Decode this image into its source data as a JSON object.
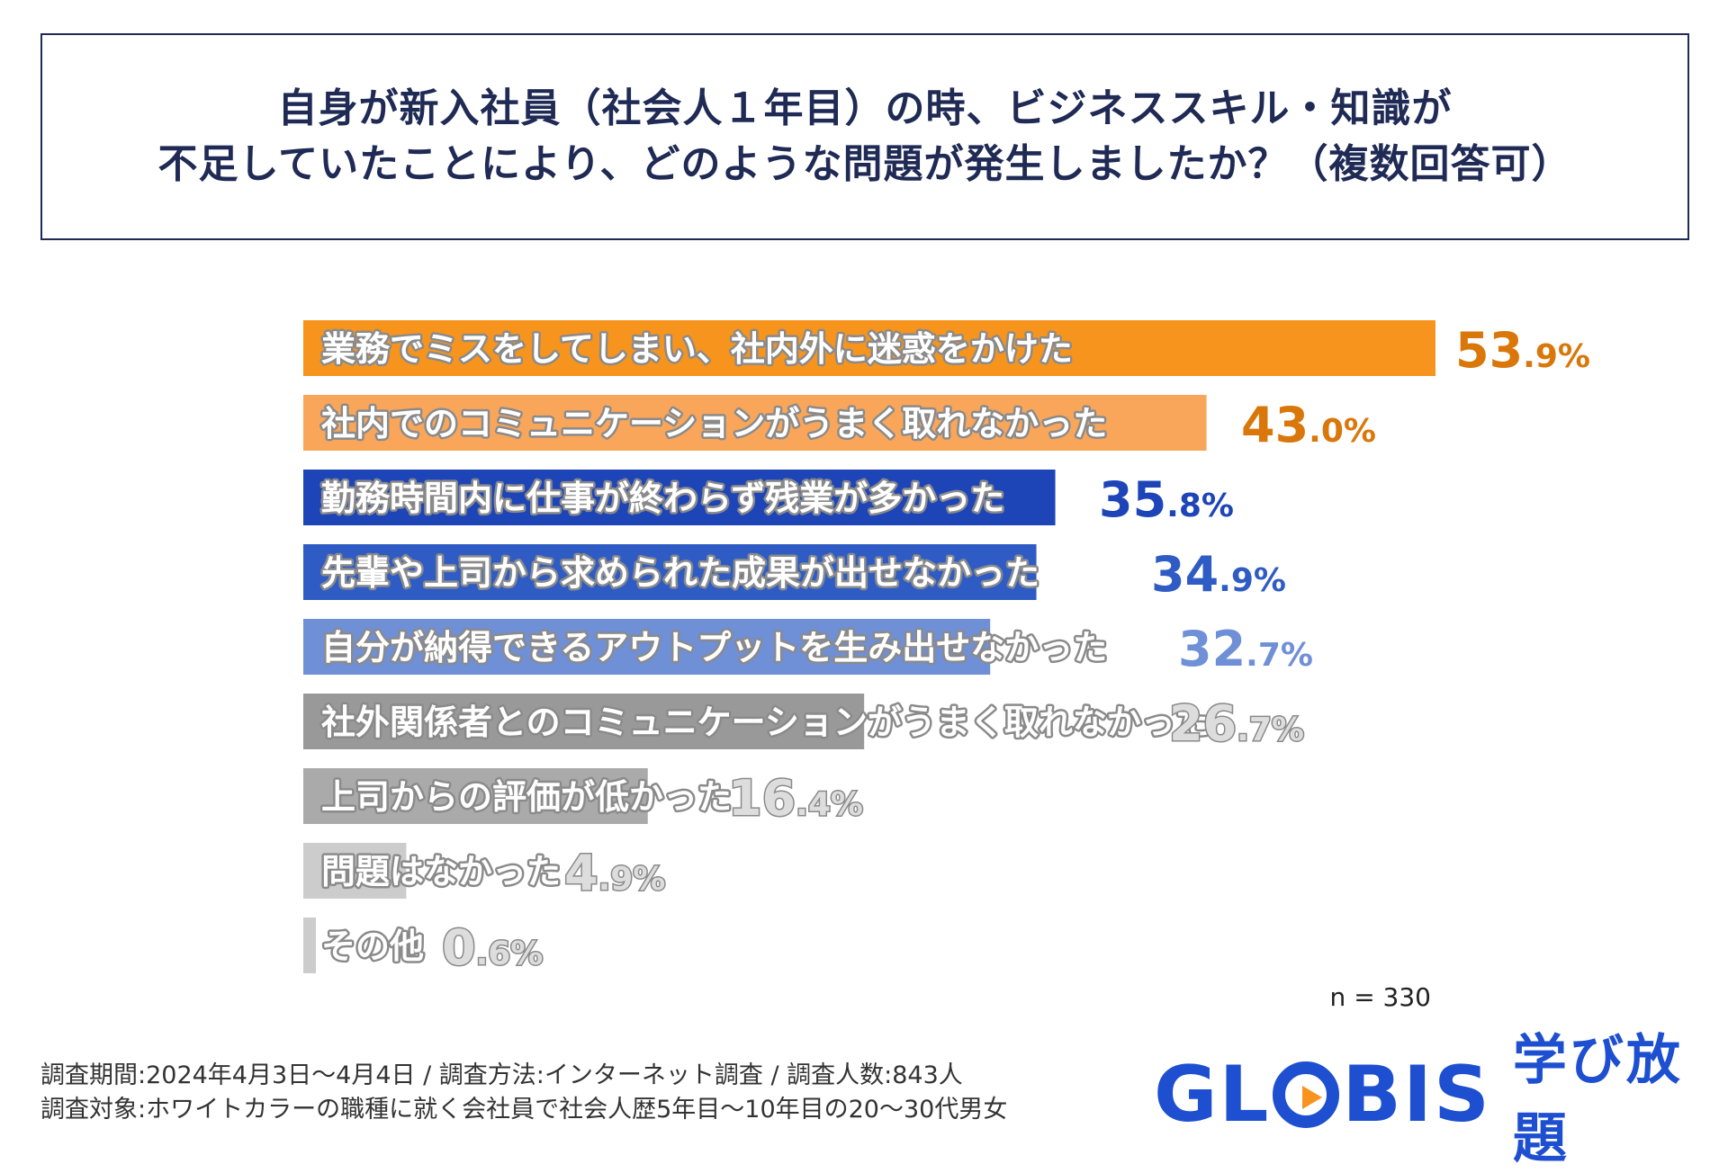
{
  "header": {
    "title_line1": "自身が新入社員（社会人１年目）の時、ビジネススキル・知識が",
    "title_line2": "不足していたことにより、どのような問題が発生しましたか？（複数回答可）"
  },
  "chart_data": {
    "type": "bar",
    "orientation": "horizontal",
    "categories": [
      "業務でミスをしてしまい、社内外に迷惑をかけた",
      "社内でのコミュニケーションがうまく取れなかった",
      "勤務時間内に仕事が終わらず残業が多かった",
      "先輩や上司から求められた成果が出せなかった",
      "自分が納得できるアウトプットを生み出せなかった",
      "社外関係者とのコミュニケーションがうまく取れなかった",
      "上司からの評価が低かった",
      "問題はなかった",
      "その他"
    ],
    "values": [
      53.9,
      43.0,
      35.8,
      34.9,
      32.7,
      26.7,
      16.4,
      4.9,
      0.6
    ],
    "value_int": [
      "53",
      "43",
      "35",
      "34",
      "32",
      "26",
      "16",
      "4",
      "0"
    ],
    "value_dec": [
      ".9%",
      ".0%",
      ".8%",
      ".9%",
      ".7%",
      ".7%",
      ".4%",
      ".9%",
      ".6%"
    ],
    "bar_colors": [
      "#f7941d",
      "#f9a65a",
      "#1d45b8",
      "#2f5cc4",
      "#6f8fd6",
      "#999999",
      "#aaaaaa",
      "#cccccc",
      "#cccccc"
    ],
    "value_colors": [
      "#d9770a",
      "#d9770a",
      "#1d45b8",
      "#2f5cc4",
      "#6f8fd6",
      "#dddddd",
      "#dddddd",
      "#dddddd",
      "#dddddd"
    ],
    "xlim": [
      0,
      53.9
    ],
    "sample_size_label": "n = 330"
  },
  "footer": {
    "line1": "調査期間:2024年4月3日〜4月4日 / 調査方法:インターネット調査 / 調査人数:843人",
    "line2": "調査対象:ホワイトカラーの職種に就く会社員で社会人歴5年目〜10年目の20〜30代男女"
  },
  "logo": {
    "word_pre": "GL",
    "word_post": "BIS",
    "sub": "学び放題",
    "brand_color": "#1d4fd0",
    "play_color": "#f7931e"
  }
}
